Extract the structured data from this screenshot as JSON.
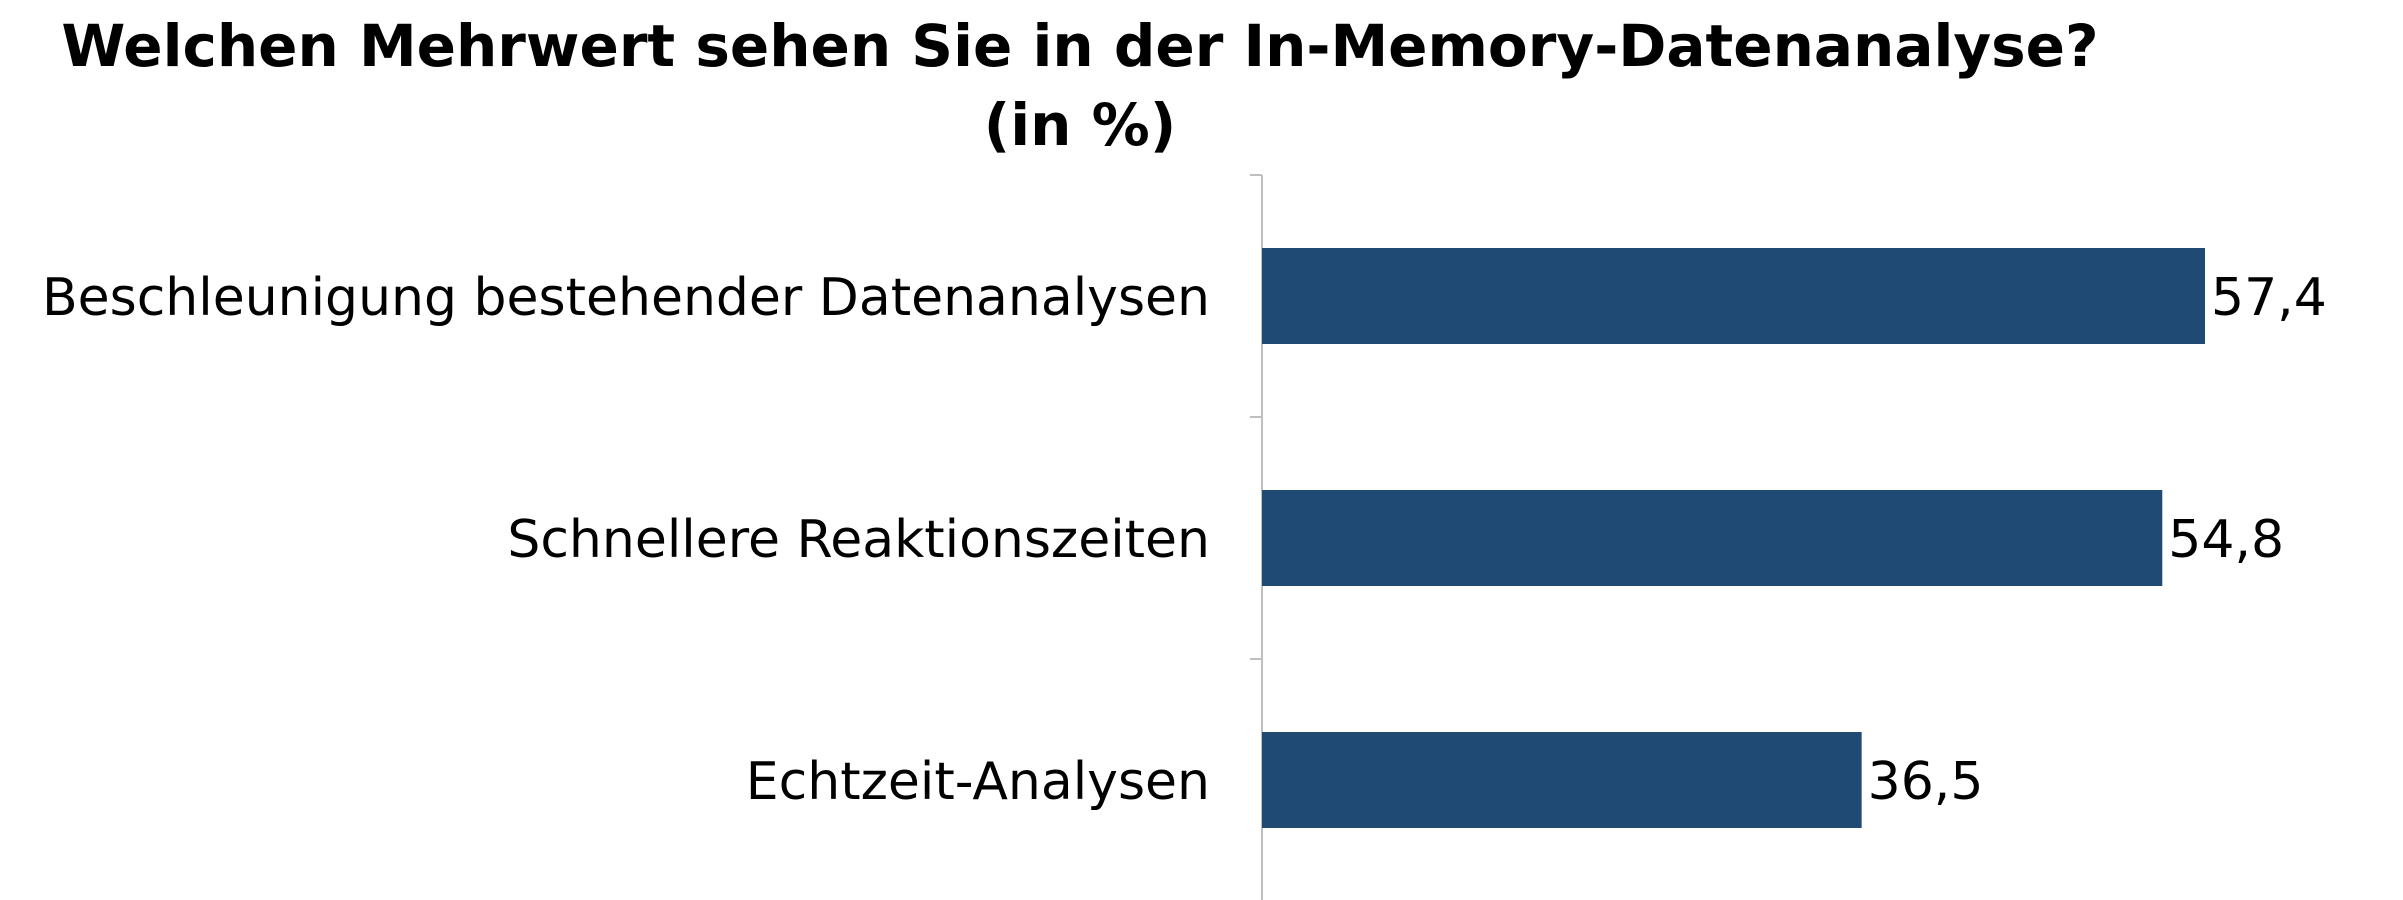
{
  "chart_data": {
    "type": "bar",
    "orientation": "horizontal",
    "title": "Welchen Mehrwert sehen Sie in der In-Memory-Datenanalyse?",
    "subtitle": "(in %)",
    "categories": [
      "Beschleunigung bestehender Datenanalysen",
      "Schnellere Reaktionszeiten",
      "Echtzeit-Analysen"
    ],
    "values": [
      57.4,
      54.8,
      36.5
    ],
    "value_labels": [
      "57,4",
      "54,8",
      "36,5"
    ],
    "xlim": [
      0,
      57.4
    ],
    "grid": false,
    "legend": "none",
    "bar_color": "#1F4A73",
    "axis_color": "#BFBFBF"
  }
}
